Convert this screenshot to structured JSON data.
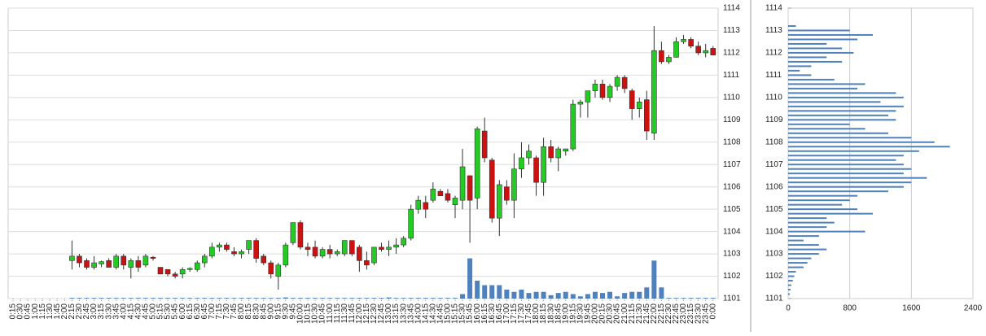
{
  "chart_data": {
    "type": "candlestick",
    "categories": [
      "0:15",
      "0:30",
      "0:45",
      "1:00",
      "1:15",
      "1:30",
      "1:45",
      "2:00",
      "2:15",
      "2:30",
      "2:45",
      "3:00",
      "3:15",
      "3:30",
      "3:45",
      "4:00",
      "4:15",
      "4:30",
      "4:45",
      "5:00",
      "5:15",
      "5:30",
      "5:45",
      "6:00",
      "6:15",
      "6:30",
      "6:45",
      "7:00",
      "7:15",
      "7:30",
      "7:45",
      "8:00",
      "8:15",
      "8:30",
      "8:45",
      "9:00",
      "9:15",
      "9:30",
      "9:45",
      "10:00",
      "10:15",
      "10:30",
      "10:45",
      "11:00",
      "11:15",
      "11:30",
      "11:45",
      "12:00",
      "12:15",
      "12:30",
      "12:45",
      "13:00",
      "13:15",
      "13:30",
      "13:45",
      "14:00",
      "14:15",
      "14:30",
      "14:45",
      "15:00",
      "15:15",
      "15:30",
      "15:45",
      "16:00",
      "16:15",
      "16:30",
      "16:45",
      "17:00",
      "17:15",
      "17:30",
      "17:45",
      "18:00",
      "18:15",
      "18:30",
      "18:45",
      "19:00",
      "19:15",
      "19:30",
      "19:45",
      "20:00",
      "20:15",
      "20:30",
      "20:45",
      "21:00",
      "21:15",
      "21:30",
      "21:45",
      "22:00",
      "22:15",
      "22:30",
      "22:45",
      "23:00",
      "23:15",
      "23:30",
      "23:45",
      "0:00"
    ],
    "open": [
      null,
      null,
      null,
      null,
      null,
      null,
      null,
      null,
      1102.7,
      1102.9,
      1102.7,
      1102.4,
      1102.55,
      1102.7,
      1102.4,
      1102.9,
      1102.4,
      1102.7,
      1102.5,
      1102.85,
      1102.4,
      1102.3,
      1102.1,
      1102.1,
      1102.3,
      1102.3,
      1102.6,
      1102.9,
      1103.3,
      1103.4,
      1103.1,
      1103.0,
      1103.2,
      1103.6,
      1102.9,
      1102.6,
      1102.0,
      1102.5,
      1103.5,
      1104.4,
      1103.3,
      1103.3,
      1102.9,
      1103.2,
      1103.0,
      1103.0,
      1103.6,
      1103.3,
      1102.7,
      1102.6,
      1103.3,
      1103.2,
      1103.3,
      1103.4,
      1103.7,
      1105.0,
      1105.3,
      1105.4,
      1105.8,
      1105.7,
      1105.2,
      1105.4,
      1106.5,
      1105.5,
      1108.5,
      1107.2,
      1104.6,
      1106.0,
      1105.4,
      1106.8,
      1107.3,
      1107.3,
      1106.2,
      1107.8,
      1107.3,
      1107.6,
      1107.7,
      1109.7,
      1109.8,
      1110.3,
      1110.6,
      1110.0,
      1110.5,
      1110.9,
      1110.3,
      1109.5,
      1109.9,
      1108.4,
      1112.1,
      1111.6,
      1111.8,
      1112.5,
      1112.6,
      1112.3,
      1112.0,
      1112.2
    ],
    "high": [
      null,
      null,
      null,
      null,
      null,
      null,
      null,
      null,
      1103.6,
      1103.0,
      1102.8,
      1102.9,
      1102.7,
      1102.8,
      1103.0,
      1103.0,
      1102.8,
      1102.9,
      1103.0,
      1102.9,
      1102.4,
      1102.3,
      1102.2,
      1102.4,
      1102.4,
      1102.7,
      1103.0,
      1103.5,
      1103.5,
      1103.5,
      1103.3,
      1103.2,
      1103.6,
      1103.7,
      1103.0,
      1102.7,
      1102.6,
      1103.5,
      1104.4,
      1104.5,
      1103.5,
      1103.6,
      1103.3,
      1103.4,
      1103.2,
      1103.6,
      1103.6,
      1103.4,
      1103.1,
      1103.3,
      1103.5,
      1103.6,
      1103.7,
      1103.8,
      1105.2,
      1105.6,
      1105.6,
      1106.2,
      1105.9,
      1105.9,
      1105.6,
      1107.7,
      1106.5,
      1108.7,
      1109.1,
      1107.3,
      1106.3,
      1106.3,
      1107.5,
      1108.0,
      1107.9,
      1107.4,
      1108.2,
      1108.1,
      1107.8,
      1107.7,
      1109.9,
      1109.9,
      1110.3,
      1110.8,
      1110.8,
      1110.6,
      1111.0,
      1111.0,
      1110.4,
      1110.0,
      1110.3,
      1113.2,
      1112.5,
      1111.9,
      1112.7,
      1112.8,
      1112.7,
      1112.5,
      1112.4,
      1112.3
    ],
    "low": [
      null,
      null,
      null,
      null,
      null,
      null,
      null,
      null,
      1102.3,
      1102.4,
      1102.3,
      1102.3,
      1102.4,
      1102.4,
      1102.3,
      1102.3,
      1101.9,
      1102.2,
      1102.4,
      1102.7,
      1102.1,
      1102.0,
      1101.9,
      1101.9,
      1102.2,
      1102.2,
      1102.4,
      1102.8,
      1103.1,
      1103.1,
      1102.9,
      1102.8,
      1103.0,
      1102.6,
      1102.5,
      1101.9,
      1101.4,
      1102.4,
      1103.4,
      1103.2,
      1102.9,
      1102.8,
      1102.8,
      1102.8,
      1102.9,
      1102.9,
      1102.9,
      1102.2,
      1102.3,
      1102.5,
      1103.1,
      1102.9,
      1103.0,
      1103.3,
      1103.6,
      1104.8,
      1104.6,
      1105.3,
      1105.6,
      1105.3,
      1104.6,
      1105.0,
      1103.5,
      1105.0,
      1107.1,
      1104.4,
      1103.8,
      1105.2,
      1104.6,
      1106.4,
      1107.0,
      1105.6,
      1105.6,
      1107.1,
      1106.7,
      1107.4,
      1107.6,
      1109.1,
      1109.1,
      1110.0,
      1109.9,
      1109.8,
      1110.3,
      1110.2,
      1109.0,
      1109.1,
      1108.1,
      1108.1,
      1111.5,
      1111.5,
      1111.8,
      1112.4,
      1112.2,
      1111.9,
      1111.8,
      1111.9
    ],
    "close": [
      null,
      null,
      null,
      null,
      null,
      null,
      null,
      null,
      1102.9,
      1102.6,
      1102.4,
      1102.6,
      1102.65,
      1102.4,
      1102.9,
      1102.5,
      1102.7,
      1102.4,
      1102.9,
      1102.8,
      1102.1,
      1102.1,
      1102.0,
      1102.3,
      1102.35,
      1102.6,
      1102.9,
      1103.3,
      1103.4,
      1103.2,
      1103.0,
      1103.1,
      1103.6,
      1102.8,
      1102.6,
      1102.1,
      1102.5,
      1103.4,
      1104.4,
      1103.3,
      1103.2,
      1102.9,
      1103.2,
      1103.0,
      1103.1,
      1103.6,
      1103.0,
      1102.7,
      1102.5,
      1103.3,
      1103.2,
      1103.3,
      1103.4,
      1103.7,
      1105.0,
      1105.4,
      1105.0,
      1105.9,
      1105.6,
      1105.4,
      1105.5,
      1106.9,
      1105.4,
      1108.6,
      1107.3,
      1104.6,
      1106.1,
      1105.4,
      1106.8,
      1107.3,
      1107.6,
      1106.2,
      1107.8,
      1107.3,
      1107.7,
      1107.7,
      1109.7,
      1109.8,
      1110.3,
      1110.6,
      1110.0,
      1110.5,
      1110.9,
      1110.4,
      1109.5,
      1109.8,
      1108.5,
      1112.1,
      1111.6,
      1111.8,
      1112.5,
      1112.6,
      1112.3,
      1112.0,
      1112.1,
      1111.9
    ],
    "volume": [
      null,
      null,
      null,
      null,
      null,
      null,
      null,
      null,
      0.03,
      0.03,
      0.03,
      0.03,
      0.03,
      0.03,
      0.03,
      0.03,
      0.03,
      0.03,
      0.03,
      0.03,
      0.03,
      0.03,
      0.03,
      0.03,
      0.03,
      0.03,
      0.03,
      0.03,
      0.03,
      0.03,
      0.03,
      0.03,
      0.03,
      0.03,
      0.03,
      0.03,
      0.03,
      0.05,
      0.03,
      0.03,
      0.03,
      0.03,
      0.03,
      0.03,
      0.03,
      0.03,
      0.03,
      0.03,
      0.03,
      0.03,
      0.03,
      0.05,
      0.03,
      0.03,
      0.03,
      0.03,
      0.03,
      0.03,
      0.03,
      0.03,
      0.03,
      0.2,
      1.8,
      0.8,
      0.6,
      0.6,
      0.6,
      0.4,
      0.3,
      0.4,
      0.25,
      0.3,
      0.3,
      0.15,
      0.25,
      0.3,
      0.2,
      0.1,
      0.2,
      0.3,
      0.25,
      0.3,
      0.1,
      0.25,
      0.3,
      0.3,
      0.5,
      1.7,
      0.5,
      0.03,
      0.03,
      0.03,
      0.03,
      0.03,
      0.03,
      0.03
    ],
    "up_color": "#22cc22",
    "down_color": "#cc1111",
    "volume_color": "#4f81bd",
    "ylim": [
      1101,
      1114
    ],
    "yticks": [
      1101,
      1102,
      1103,
      1104,
      1105,
      1106,
      1107,
      1108,
      1109,
      1110,
      1111,
      1112,
      1113,
      1114
    ],
    "grid": true,
    "profile": {
      "prices": [
        1113.2,
        1113.0,
        1112.8,
        1112.6,
        1112.4,
        1112.2,
        1112.0,
        1111.8,
        1111.6,
        1111.4,
        1111.2,
        1111.0,
        1110.8,
        1110.6,
        1110.4,
        1110.2,
        1110.0,
        1109.8,
        1109.6,
        1109.4,
        1109.2,
        1109.0,
        1108.8,
        1108.6,
        1108.4,
        1108.2,
        1108.0,
        1107.8,
        1107.6,
        1107.4,
        1107.2,
        1107.0,
        1106.8,
        1106.6,
        1106.4,
        1106.2,
        1106.0,
        1105.8,
        1105.6,
        1105.4,
        1105.2,
        1105.0,
        1104.8,
        1104.6,
        1104.4,
        1104.2,
        1104.0,
        1103.8,
        1103.6,
        1103.4,
        1103.2,
        1103.0,
        1102.8,
        1102.6,
        1102.4,
        1102.2,
        1102.0,
        1101.8,
        1101.6,
        1101.4,
        1101.2
      ],
      "values": [
        100,
        800,
        1100,
        900,
        500,
        700,
        850,
        500,
        700,
        300,
        150,
        300,
        600,
        1000,
        900,
        1400,
        1500,
        1200,
        1500,
        1400,
        1300,
        1400,
        800,
        1000,
        1300,
        1600,
        1900,
        2100,
        1700,
        1500,
        1400,
        1500,
        1600,
        1500,
        1800,
        1600,
        1500,
        1300,
        900,
        800,
        700,
        900,
        1100,
        500,
        600,
        500,
        1000,
        400,
        200,
        400,
        500,
        400,
        300,
        250,
        200,
        100,
        80,
        60,
        40,
        30,
        20
      ],
      "xlim": [
        0,
        2400
      ],
      "xticks": [
        0,
        800,
        1600,
        2400
      ]
    }
  }
}
